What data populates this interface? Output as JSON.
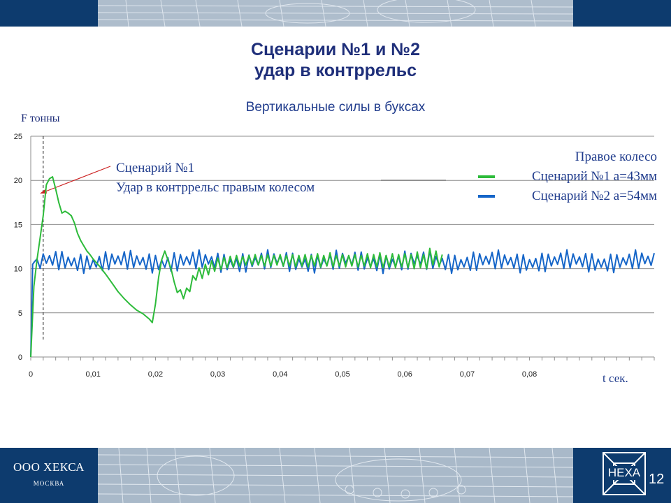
{
  "slide": {
    "title_line1": "Сценарии №1 и №2",
    "title_line2": "удар в контррельс",
    "page_number": "12"
  },
  "footer": {
    "company": "ООО ХЕКСА",
    "city": "МОСКВА",
    "logo_text": "HEXA"
  },
  "colors": {
    "banner": "#0d3b6e",
    "title": "#1f2f7a",
    "series1": "#2dbb3a",
    "series2": "#1565c8",
    "annotation_arrow": "#cc2222"
  },
  "chart_data": {
    "type": "line",
    "title": "Вертикальные силы в буксах",
    "ylabel": "F тонны",
    "xlabel": "t сек.",
    "xlim": [
      0,
      0.1
    ],
    "ylim": [
      0,
      25
    ],
    "x_ticks": [
      "0",
      "0,01",
      "0,02",
      "0,03",
      "0,04",
      "0,05",
      "0,06",
      "0,07",
      "0,08"
    ],
    "y_ticks": [
      "0",
      "5",
      "10",
      "15",
      "20",
      "25"
    ],
    "grid": "horizontal",
    "legend_title": "Правое колесо",
    "legend_position": "top-right",
    "annotation": {
      "line1": "Сценарий №1",
      "line2": "Удар в контррельс правым колесом",
      "marker_x": 0.002
    },
    "series": [
      {
        "name": "Сценарий №1 a=43мм",
        "color": "#2dbb3a",
        "points": [
          [
            0,
            0
          ],
          [
            0.0005,
            8
          ],
          [
            0.001,
            11
          ],
          [
            0.0015,
            13.5
          ],
          [
            0.002,
            16
          ],
          [
            0.0025,
            19.5
          ],
          [
            0.003,
            20.2
          ],
          [
            0.0035,
            20.4
          ],
          [
            0.004,
            19
          ],
          [
            0.0045,
            17.5
          ],
          [
            0.005,
            16.3
          ],
          [
            0.0055,
            16.5
          ],
          [
            0.006,
            16.3
          ],
          [
            0.0065,
            16
          ],
          [
            0.007,
            15.2
          ],
          [
            0.0075,
            14
          ],
          [
            0.008,
            13.2
          ],
          [
            0.0085,
            12.6
          ],
          [
            0.009,
            12
          ],
          [
            0.0095,
            11.6
          ],
          [
            0.01,
            11.1
          ],
          [
            0.011,
            10.3
          ],
          [
            0.012,
            9.4
          ],
          [
            0.013,
            8.4
          ],
          [
            0.014,
            7.4
          ],
          [
            0.015,
            6.6
          ],
          [
            0.016,
            5.9
          ],
          [
            0.017,
            5.3
          ],
          [
            0.018,
            4.9
          ],
          [
            0.019,
            4.3
          ],
          [
            0.0195,
            3.9
          ],
          [
            0.02,
            6
          ],
          [
            0.0205,
            9
          ],
          [
            0.021,
            11
          ],
          [
            0.0215,
            12
          ],
          [
            0.022,
            11
          ],
          [
            0.0225,
            10
          ],
          [
            0.023,
            8.5
          ],
          [
            0.0235,
            7.3
          ],
          [
            0.024,
            7.6
          ],
          [
            0.0245,
            6.6
          ],
          [
            0.025,
            7.8
          ],
          [
            0.0255,
            7.4
          ],
          [
            0.026,
            9.2
          ],
          [
            0.0265,
            8.7
          ],
          [
            0.027,
            10.1
          ],
          [
            0.0275,
            8.9
          ],
          [
            0.028,
            10.5
          ],
          [
            0.0285,
            9.3
          ],
          [
            0.029,
            10.9
          ],
          [
            0.0295,
            9.7
          ],
          [
            0.03,
            11.2
          ],
          [
            0.0305,
            9.9
          ],
          [
            0.031,
            11.3
          ],
          [
            0.0315,
            10.1
          ],
          [
            0.032,
            11.4
          ],
          [
            0.0325,
            10.2
          ],
          [
            0.033,
            11.5
          ],
          [
            0.0335,
            10.3
          ],
          [
            0.034,
            11.4
          ],
          [
            0.0345,
            10.4
          ],
          [
            0.035,
            11.5
          ],
          [
            0.0355,
            10.4
          ],
          [
            0.036,
            11.6
          ],
          [
            0.0365,
            10.4
          ],
          [
            0.037,
            11.5
          ],
          [
            0.0375,
            10.3
          ],
          [
            0.038,
            11.6
          ],
          [
            0.0385,
            10.3
          ],
          [
            0.039,
            11.5
          ],
          [
            0.0395,
            10.4
          ],
          [
            0.04,
            11.6
          ],
          [
            0.0405,
            10.3
          ],
          [
            0.041,
            11.5
          ],
          [
            0.0415,
            10.3
          ],
          [
            0.042,
            11.6
          ],
          [
            0.0425,
            10.2
          ],
          [
            0.043,
            11.5
          ],
          [
            0.0435,
            10.3
          ],
          [
            0.044,
            11.6
          ],
          [
            0.0445,
            10.2
          ],
          [
            0.045,
            11.5
          ],
          [
            0.0455,
            10.3
          ],
          [
            0.046,
            11.7
          ],
          [
            0.0465,
            10.2
          ],
          [
            0.047,
            11.5
          ],
          [
            0.0475,
            10.3
          ],
          [
            0.048,
            11.8
          ],
          [
            0.0485,
            10.2
          ],
          [
            0.049,
            11.5
          ],
          [
            0.0495,
            10.3
          ],
          [
            0.05,
            11.6
          ],
          [
            0.0505,
            10.2
          ],
          [
            0.051,
            11.5
          ],
          [
            0.0515,
            10.3
          ],
          [
            0.052,
            11.6
          ],
          [
            0.0525,
            10.2
          ],
          [
            0.053,
            11.5
          ],
          [
            0.0535,
            10.3
          ],
          [
            0.054,
            11.7
          ],
          [
            0.0545,
            10.1
          ],
          [
            0.055,
            11.6
          ],
          [
            0.0555,
            10.2
          ],
          [
            0.056,
            11.8
          ],
          [
            0.0565,
            10.1
          ],
          [
            0.057,
            11.5
          ],
          [
            0.0575,
            10.2
          ],
          [
            0.058,
            11.7
          ],
          [
            0.0585,
            10.1
          ],
          [
            0.059,
            11.6
          ],
          [
            0.0595,
            10.2
          ],
          [
            0.06,
            11.7
          ],
          [
            0.0605,
            10.1
          ],
          [
            0.061,
            11.6
          ],
          [
            0.0615,
            10.0
          ],
          [
            0.062,
            11.9
          ],
          [
            0.0625,
            10.1
          ],
          [
            0.063,
            11.6
          ],
          [
            0.0635,
            10.0
          ],
          [
            0.064,
            12.3
          ],
          [
            0.0645,
            10.4
          ],
          [
            0.065,
            12.0
          ],
          [
            0.0655,
            10.2
          ],
          [
            0.066,
            11.6
          ]
        ]
      },
      {
        "name": "Сценарий №2 a=54мм",
        "color": "#1565c8",
        "base": 10.8,
        "amplitude": 0.75,
        "period": 0.001,
        "start_points": [
          [
            0,
            0
          ],
          [
            0.0003,
            10.5
          ],
          [
            0.0006,
            10.8
          ],
          [
            0.001,
            11.1
          ]
        ],
        "x_end": 0.1
      }
    ]
  }
}
